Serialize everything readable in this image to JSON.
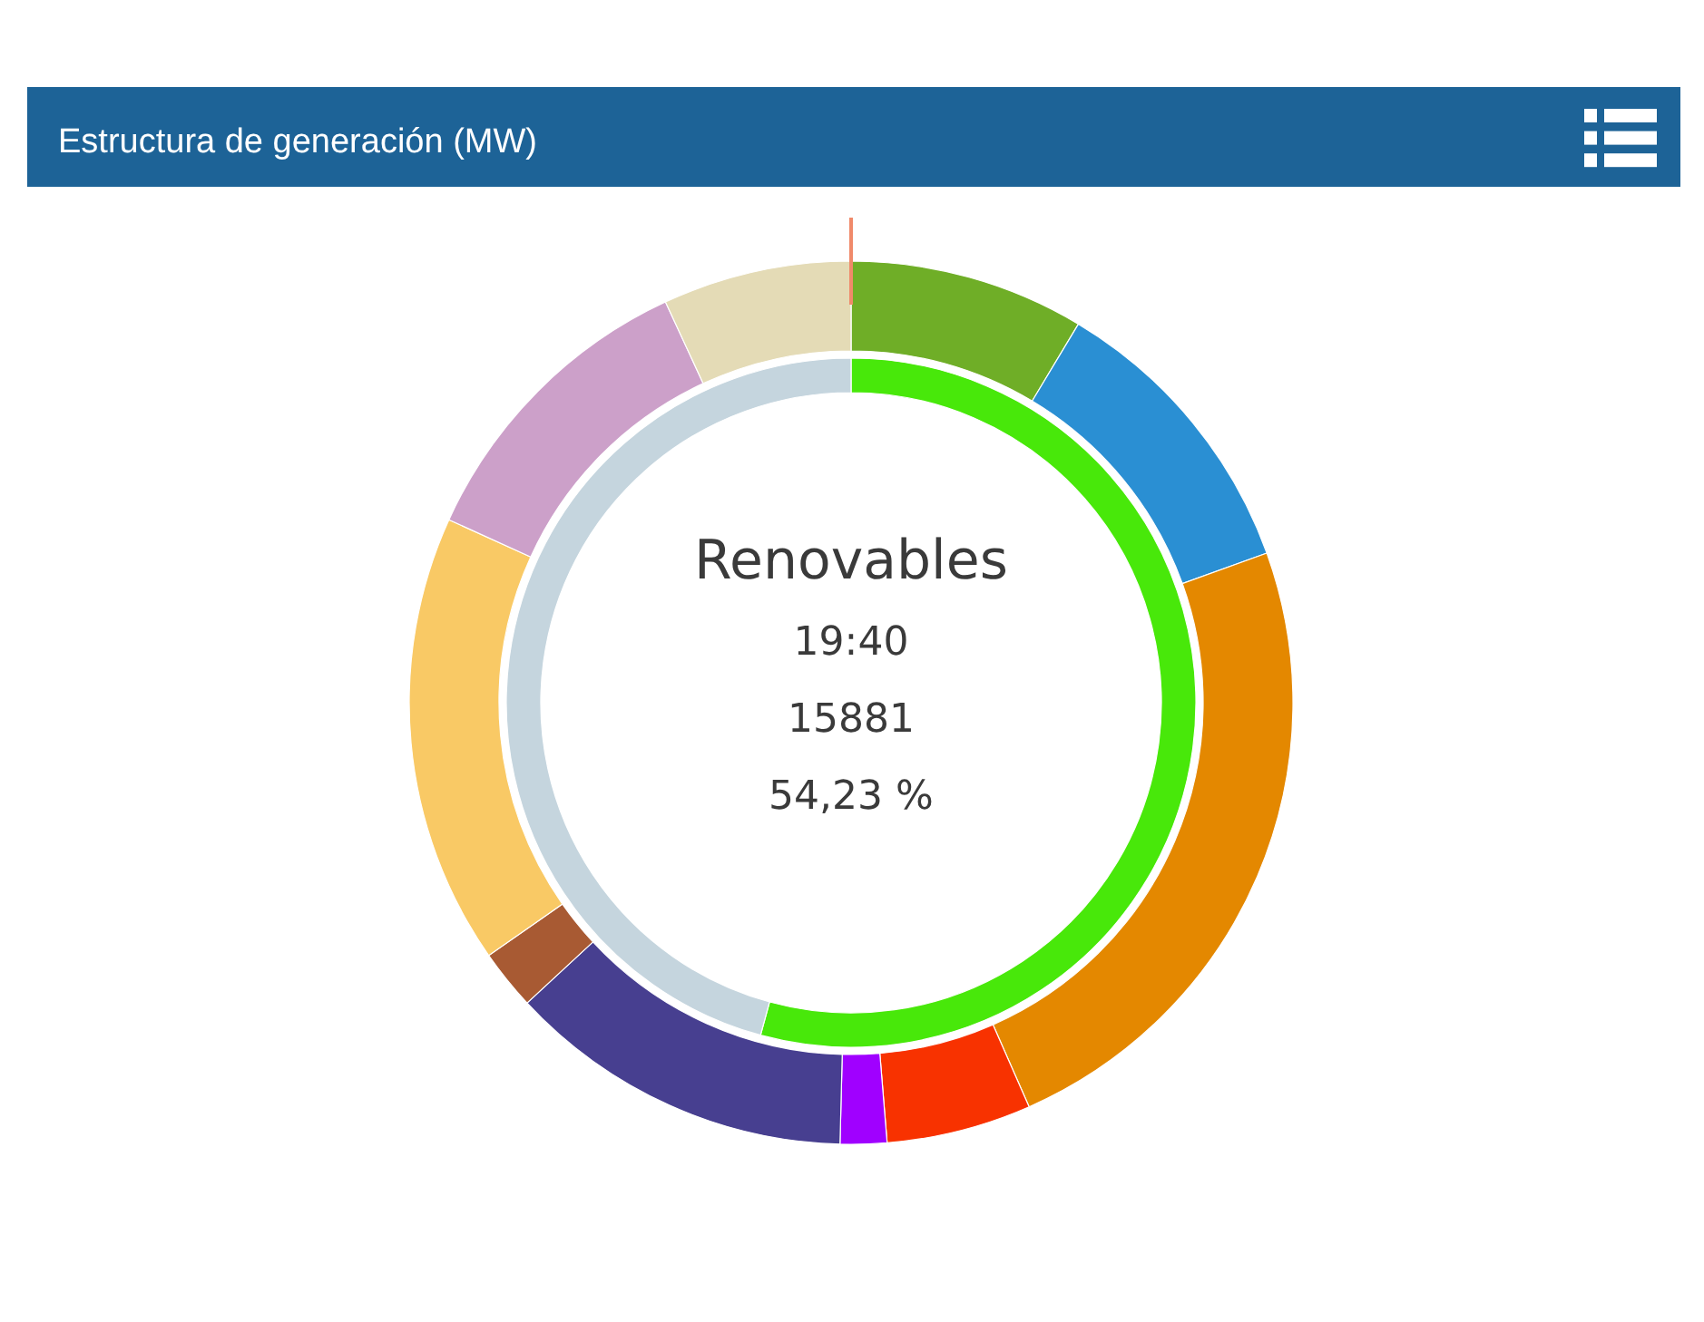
{
  "chart_data": [
    {
      "type": "donut",
      "title": "Estructura de generación (MW)",
      "categories": [
        null,
        null,
        null,
        null,
        null,
        null,
        null,
        null,
        null,
        null
      ],
      "values": [
        8.6,
        10.9,
        23.9,
        5.3,
        1.7,
        12.7,
        2.2,
        16.5,
        11.3,
        6.9
      ],
      "colors": [
        "#6fae27",
        "#2a8fd3",
        "#e48800",
        "#f83200",
        "#a000ff",
        "#473f90",
        "#a85a33",
        "#f9c965",
        "#cca0c9",
        "#e4dbb6"
      ]
    },
    {
      "type": "donut",
      "categories": [
        null,
        null
      ],
      "values": [
        54.23,
        45.77
      ],
      "colors": [
        "#48e80a",
        "#c5d5de"
      ],
      "annotations": [
        "Renovables",
        "19:40",
        "15881",
        "54,23 %"
      ]
    }
  ]
}
